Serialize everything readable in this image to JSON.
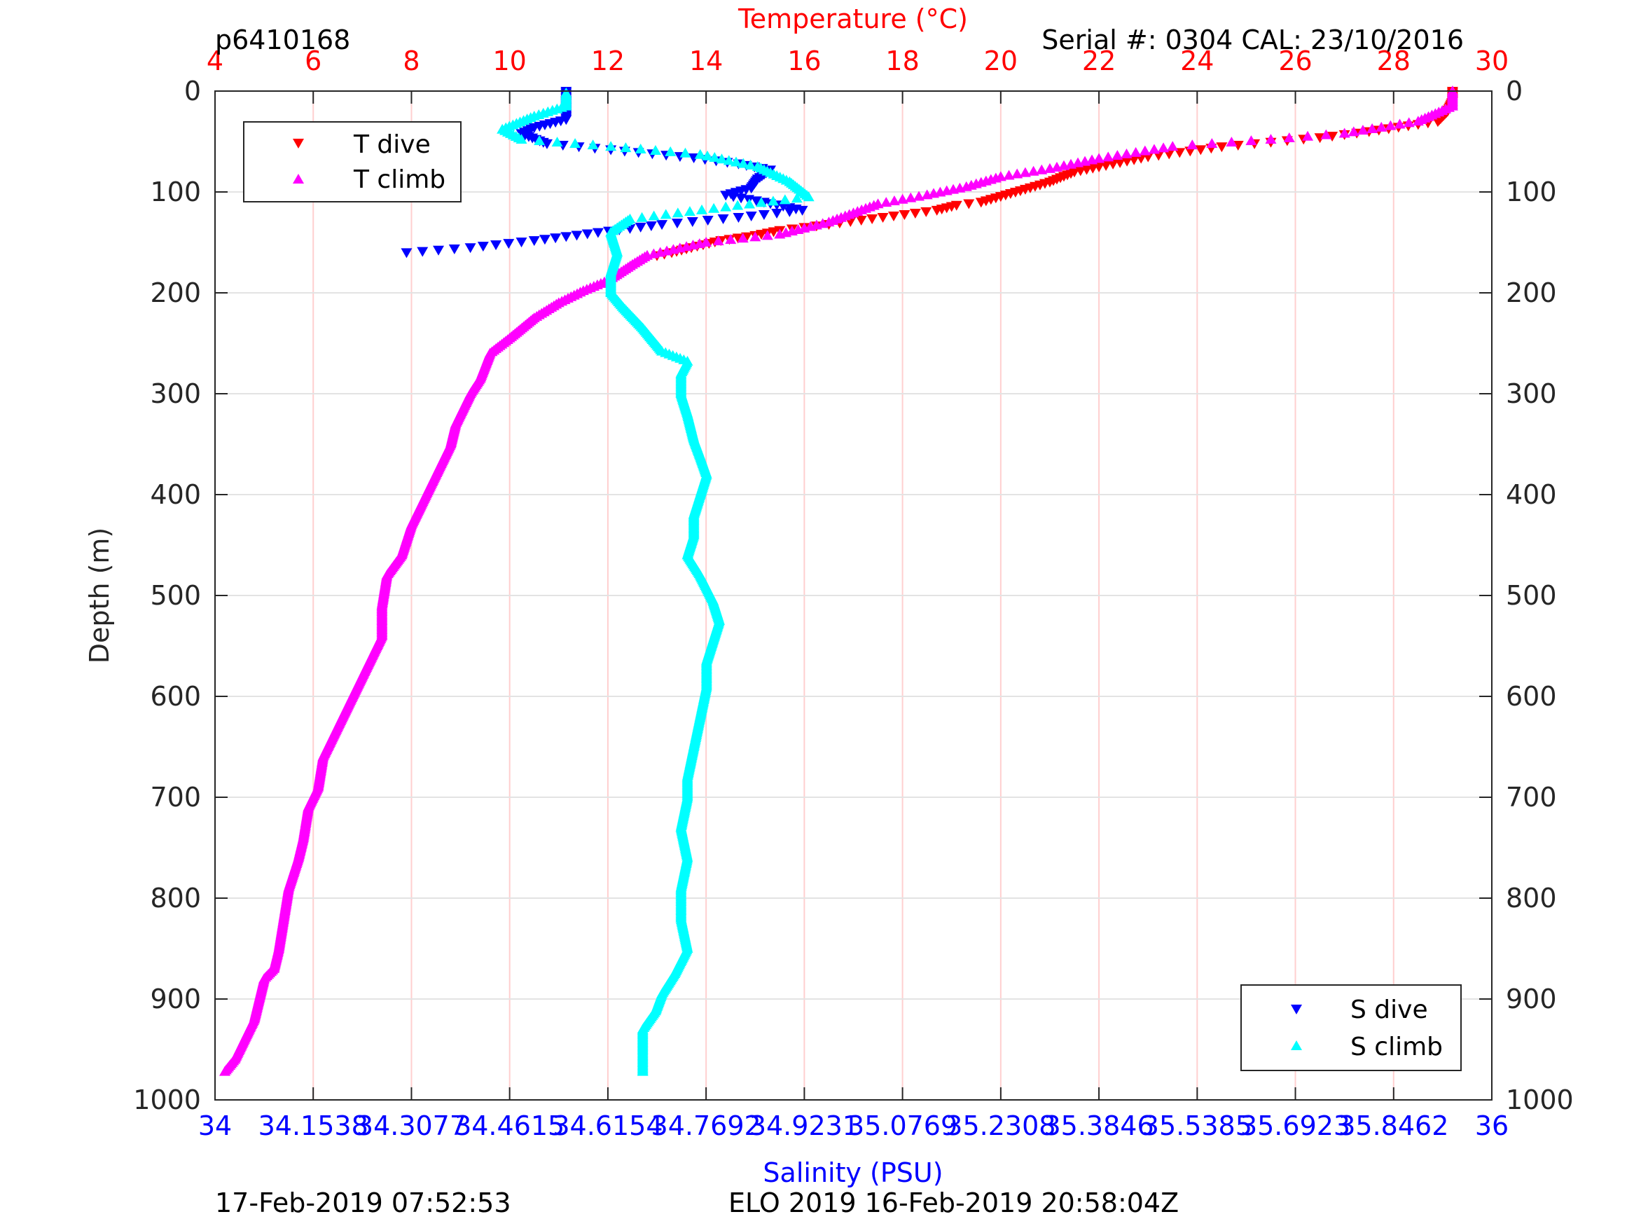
{
  "header": {
    "profile_id": "p6410168",
    "serial_cal": "Serial #: 0304  CAL: 23/10/2016"
  },
  "footer": {
    "left": "17-Feb-2019 07:52:53",
    "center": "ELO 2019 16-Feb-2019 20:58:04Z"
  },
  "chart_data": {
    "type": "scatter",
    "y_axis": {
      "label": "Depth (m)",
      "range": [
        0,
        1000
      ],
      "reversed": true,
      "ticks": [
        0,
        100,
        200,
        300,
        400,
        500,
        600,
        700,
        800,
        900,
        1000
      ]
    },
    "x_axis_top": {
      "label": "Temperature (°C)",
      "range": [
        4,
        30
      ],
      "ticks": [
        4,
        6,
        8,
        10,
        12,
        14,
        16,
        18,
        20,
        22,
        24,
        26,
        28,
        30
      ],
      "color": "#ff0000"
    },
    "x_axis_bottom": {
      "label": "Salinity (PSU)",
      "range": [
        34,
        36
      ],
      "ticks": [
        34,
        34.1538,
        34.3077,
        34.4615,
        34.6154,
        34.7692,
        34.9231,
        35.0769,
        35.2308,
        35.3846,
        35.5385,
        35.6923,
        35.8462,
        36
      ],
      "tick_labels": [
        "34",
        "34.1538",
        "34.3077",
        "34.4615",
        "34.6154",
        "34.7692",
        "34.9231",
        "35.0769",
        "35.2308",
        "35.3846",
        "35.5385",
        "35.6923",
        "35.8462",
        "36"
      ],
      "color": "#0000ff"
    },
    "grid": true,
    "legends": [
      {
        "position": "top-left",
        "entries": [
          "T dive",
          "T climb"
        ]
      },
      {
        "position": "bottom-right",
        "entries": [
          "S dive",
          "S climb"
        ]
      }
    ],
    "series": [
      {
        "name": "T dive",
        "axis": "temperature",
        "marker": "triangle-down",
        "color": "#ff0000",
        "points": [
          [
            29.2,
            0
          ],
          [
            29.2,
            10
          ],
          [
            29.1,
            20
          ],
          [
            28.9,
            30
          ],
          [
            27.5,
            40
          ],
          [
            26.5,
            46
          ],
          [
            24.5,
            55
          ],
          [
            23,
            65
          ],
          [
            22,
            75
          ],
          [
            21.5,
            80
          ],
          [
            21,
            90
          ],
          [
            20.3,
            100
          ],
          [
            19.6,
            110
          ],
          [
            19.1,
            113
          ],
          [
            18.7,
            118
          ],
          [
            17.6,
            125
          ],
          [
            16.5,
            132
          ],
          [
            15.5,
            138
          ],
          [
            15,
            143
          ],
          [
            14.3,
            148
          ],
          [
            13.7,
            155
          ],
          [
            13.3,
            160
          ],
          [
            13.0,
            163
          ]
        ]
      },
      {
        "name": "T climb",
        "axis": "temperature",
        "marker": "triangle-up",
        "color": "#ff00ff",
        "points": [
          [
            29.2,
            0
          ],
          [
            29.2,
            15
          ],
          [
            28.5,
            30
          ],
          [
            27,
            42
          ],
          [
            25.5,
            48
          ],
          [
            23.5,
            55
          ],
          [
            22,
            67
          ],
          [
            21,
            77
          ],
          [
            20,
            85
          ],
          [
            19.3,
            95
          ],
          [
            18.5,
            103
          ],
          [
            17.5,
            112
          ],
          [
            16.5,
            130
          ],
          [
            15.5,
            142
          ],
          [
            14,
            150
          ],
          [
            12.8,
            163
          ],
          [
            12.5,
            172
          ],
          [
            12.0,
            188
          ],
          [
            11.5,
            198
          ],
          [
            11,
            210
          ],
          [
            10.5,
            225
          ],
          [
            10,
            245
          ],
          [
            9.6,
            260
          ],
          [
            9.4,
            285
          ],
          [
            9.2,
            300
          ],
          [
            8.9,
            330
          ],
          [
            8.8,
            350
          ],
          [
            8.5,
            380
          ],
          [
            8.2,
            410
          ],
          [
            8.0,
            430
          ],
          [
            7.8,
            460
          ],
          [
            7.5,
            480
          ],
          [
            7.4,
            510
          ],
          [
            7.4,
            540
          ],
          [
            7.2,
            560
          ],
          [
            7.0,
            580
          ],
          [
            6.8,
            600
          ],
          [
            6.6,
            620
          ],
          [
            6.4,
            640
          ],
          [
            6.2,
            660
          ],
          [
            6.1,
            690
          ],
          [
            5.9,
            710
          ],
          [
            5.8,
            740
          ],
          [
            5.7,
            760
          ],
          [
            5.5,
            790
          ],
          [
            5.4,
            820
          ],
          [
            5.3,
            850
          ],
          [
            5.2,
            870
          ],
          [
            5.0,
            880
          ],
          [
            4.9,
            900
          ],
          [
            4.8,
            920
          ],
          [
            4.6,
            940
          ],
          [
            4.4,
            960
          ],
          [
            4.2,
            972
          ]
        ]
      },
      {
        "name": "S dive",
        "axis": "salinity",
        "marker": "triangle-down",
        "color": "#0000ff",
        "points": [
          [
            34.55,
            0
          ],
          [
            34.55,
            15
          ],
          [
            34.55,
            28
          ],
          [
            34.5,
            36
          ],
          [
            34.48,
            42
          ],
          [
            34.52,
            52
          ],
          [
            34.62,
            58
          ],
          [
            34.75,
            66
          ],
          [
            34.82,
            72
          ],
          [
            34.87,
            78
          ],
          [
            34.85,
            87
          ],
          [
            34.84,
            96
          ],
          [
            34.8,
            103
          ],
          [
            34.86,
            110
          ],
          [
            34.92,
            118
          ],
          [
            34.82,
            125
          ],
          [
            34.7,
            132
          ],
          [
            34.6,
            140
          ],
          [
            34.5,
            148
          ],
          [
            34.4,
            155
          ],
          [
            34.3,
            160
          ]
        ]
      },
      {
        "name": "S climb",
        "axis": "salinity",
        "marker": "triangle-up",
        "color": "#00ffff",
        "points": [
          [
            34.55,
            2
          ],
          [
            34.55,
            15
          ],
          [
            34.5,
            25
          ],
          [
            34.45,
            38
          ],
          [
            34.48,
            48
          ],
          [
            34.62,
            55
          ],
          [
            34.76,
            63
          ],
          [
            34.85,
            75
          ],
          [
            34.9,
            90
          ],
          [
            34.93,
            105
          ],
          [
            34.8,
            115
          ],
          [
            34.65,
            127
          ],
          [
            34.62,
            140
          ],
          [
            34.63,
            160
          ],
          [
            34.62,
            180
          ],
          [
            34.62,
            200
          ],
          [
            34.64,
            215
          ],
          [
            34.67,
            235
          ],
          [
            34.7,
            258
          ],
          [
            34.74,
            268
          ],
          [
            34.73,
            280
          ],
          [
            34.73,
            300
          ],
          [
            34.74,
            320
          ],
          [
            34.75,
            345
          ],
          [
            34.76,
            362
          ],
          [
            34.77,
            380
          ],
          [
            34.76,
            400
          ],
          [
            34.75,
            420
          ],
          [
            34.75,
            440
          ],
          [
            34.74,
            460
          ],
          [
            34.76,
            480
          ],
          [
            34.78,
            505
          ],
          [
            34.79,
            525
          ],
          [
            34.78,
            545
          ],
          [
            34.77,
            565
          ],
          [
            34.77,
            590
          ],
          [
            34.76,
            620
          ],
          [
            34.75,
            650
          ],
          [
            34.74,
            680
          ],
          [
            34.74,
            700
          ],
          [
            34.73,
            730
          ],
          [
            34.74,
            760
          ],
          [
            34.73,
            790
          ],
          [
            34.73,
            820
          ],
          [
            34.74,
            850
          ],
          [
            34.72,
            875
          ],
          [
            34.7,
            895
          ],
          [
            34.69,
            912
          ],
          [
            34.67,
            930
          ],
          [
            34.67,
            950
          ],
          [
            34.67,
            972
          ]
        ]
      }
    ]
  }
}
